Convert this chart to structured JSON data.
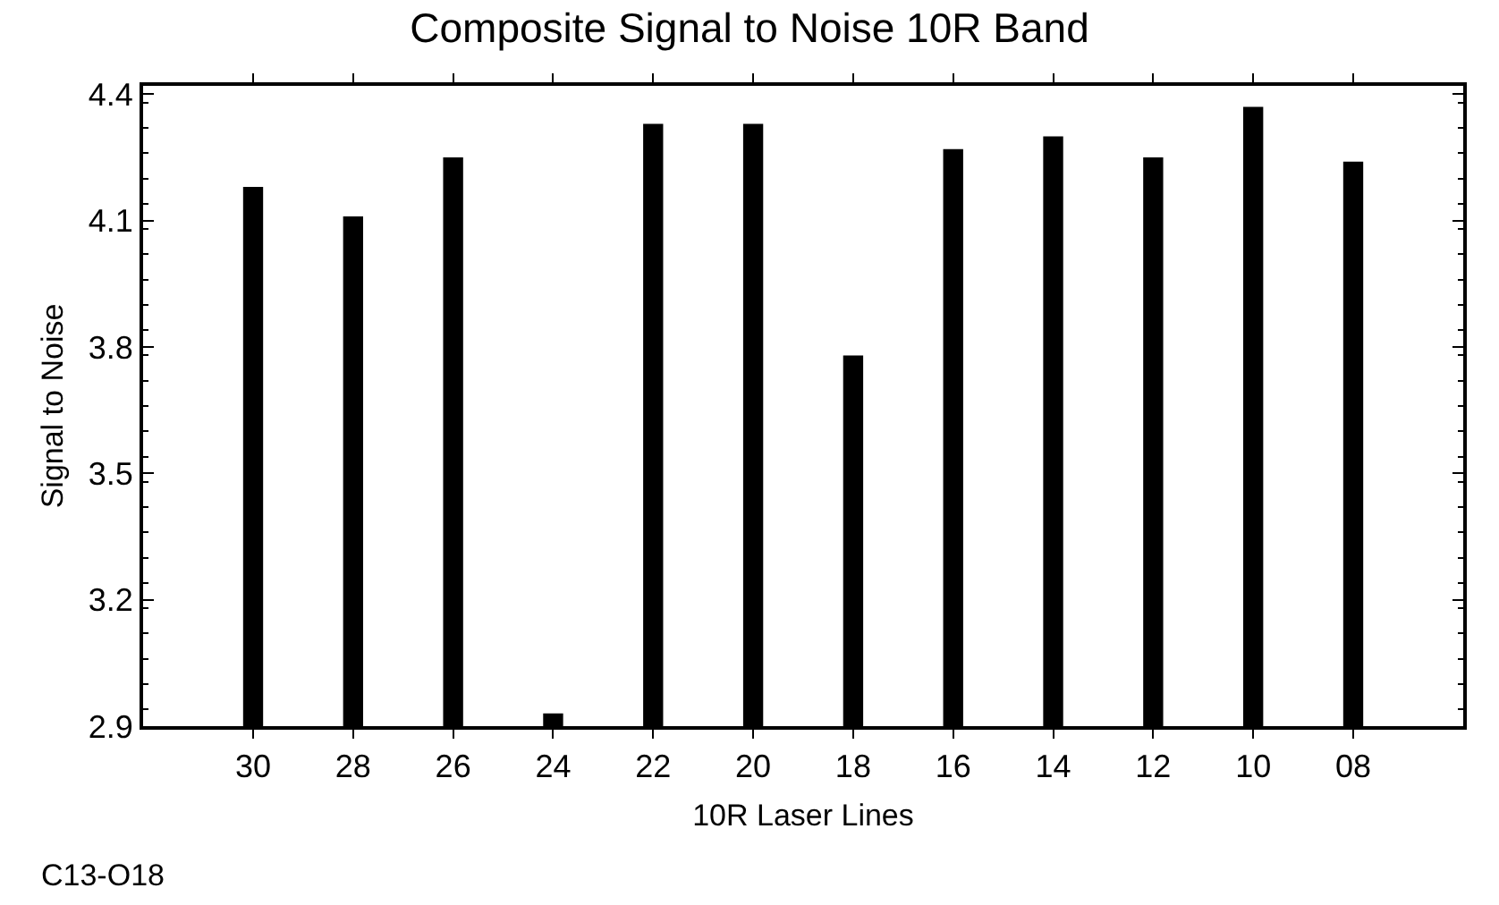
{
  "chart_data": {
    "type": "bar",
    "title": "Composite Signal to Noise 10R Band",
    "xlabel": "10R Laser Lines",
    "ylabel": "Signal to Noise",
    "categories": [
      "30",
      "28",
      "26",
      "24",
      "22",
      "20",
      "18",
      "16",
      "14",
      "12",
      "10",
      "08"
    ],
    "values": [
      4.18,
      4.11,
      4.25,
      2.93,
      4.33,
      4.33,
      3.78,
      4.27,
      4.3,
      4.25,
      4.37,
      4.24
    ],
    "color": "#000000",
    "ylim": [
      2.9,
      4.42
    ],
    "yticks": [
      2.9,
      3.2,
      3.5,
      3.8,
      4.1,
      4.4
    ],
    "grid": false,
    "annotations": [
      "C13-O18"
    ]
  }
}
